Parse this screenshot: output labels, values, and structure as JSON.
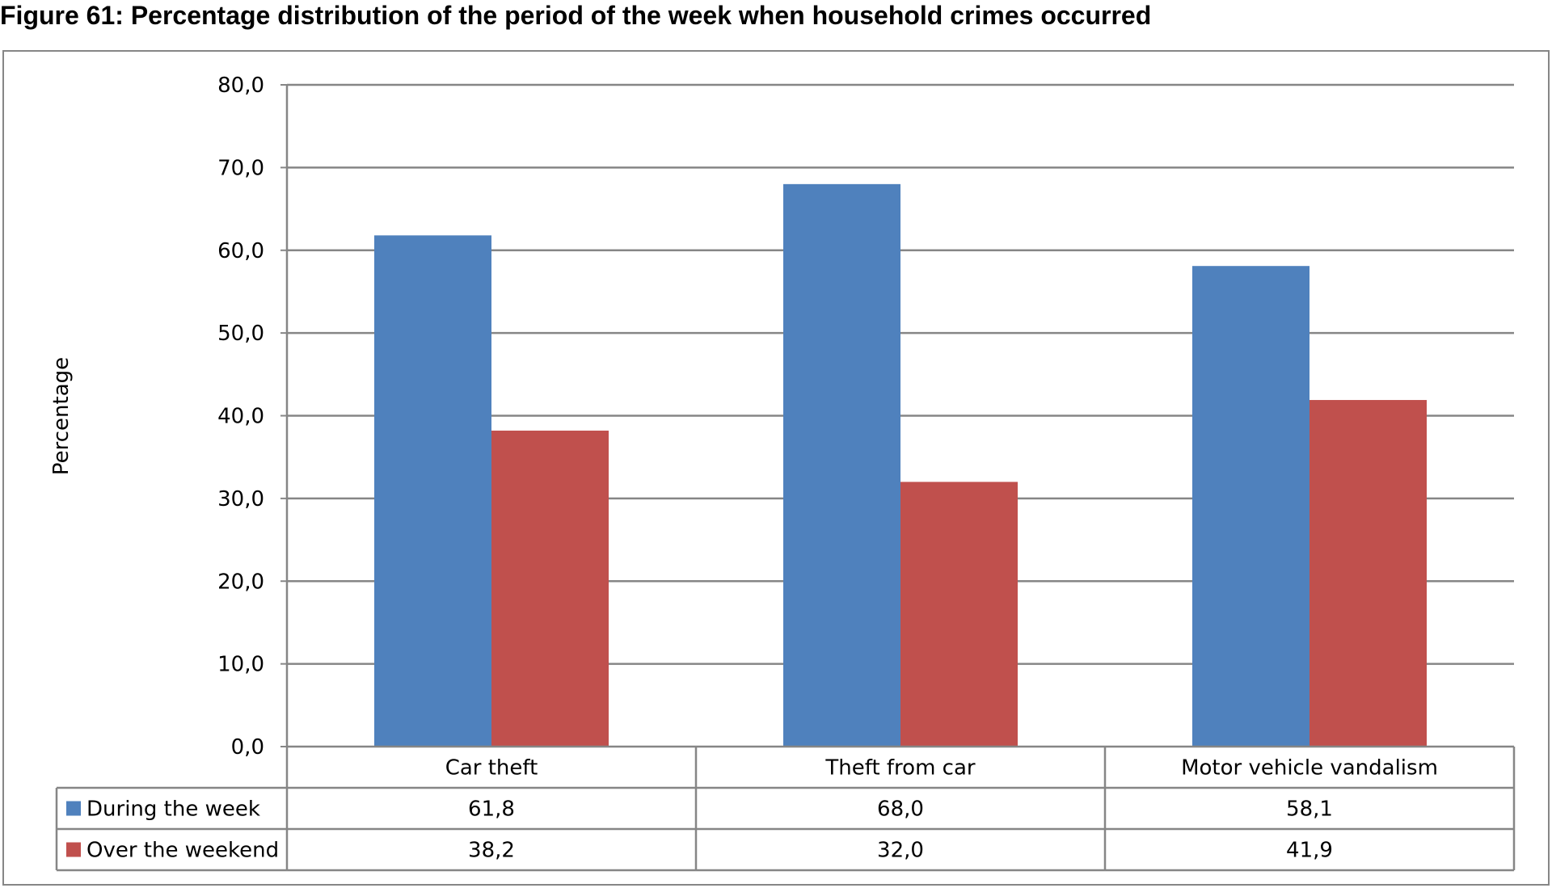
{
  "colors": {
    "during_the_week": "#4F81BD",
    "over_the_weekend": "#C0504D",
    "gridline": "#868686",
    "frame": "#868686",
    "text": "#000000"
  },
  "chart_data": {
    "type": "bar",
    "title": "Figure 61:  Percentage distribution of the period of the week when household crimes occurred",
    "xlabel": "",
    "ylabel": "Percentage",
    "categories": [
      "Car theft",
      "Theft from car",
      "Motor vehicle vandalism"
    ],
    "series": [
      {
        "name": "During the week",
        "values": [
          61.8,
          68.0,
          58.1
        ],
        "labels": [
          "61,8",
          "68,0",
          "58,1"
        ]
      },
      {
        "name": "Over the weekend",
        "values": [
          38.2,
          32.0,
          41.9
        ],
        "labels": [
          "38,2",
          "32,0",
          "41,9"
        ]
      }
    ],
    "ylim": [
      0,
      80
    ],
    "yticks": [
      0,
      10,
      20,
      30,
      40,
      50,
      60,
      70,
      80
    ],
    "ytick_labels": [
      "0,0",
      "10,0",
      "20,0",
      "30,0",
      "40,0",
      "50,0",
      "60,0",
      "70,0",
      "80,0"
    ],
    "grid": true,
    "legend": "data-table-below"
  }
}
